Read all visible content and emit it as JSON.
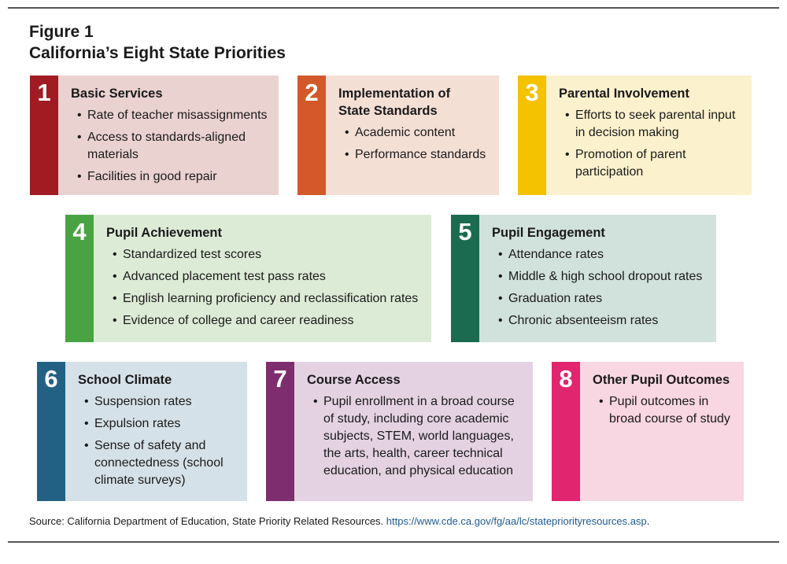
{
  "figure": {
    "label": "Figure 1",
    "title": "California’s Eight State Priorities"
  },
  "colors": {
    "p1": {
      "accent": "#a01c22",
      "fill": "#ead2d1"
    },
    "p2": {
      "accent": "#d3592a",
      "fill": "#f4dfd5"
    },
    "p3": {
      "accent": "#f5c200",
      "fill": "#fcf1cd"
    },
    "p4": {
      "accent": "#49a343",
      "fill": "#dcebd6"
    },
    "p5": {
      "accent": "#1b6b51",
      "fill": "#d1e1dc"
    },
    "p6": {
      "accent": "#226184",
      "fill": "#d5e1e8"
    },
    "p7": {
      "accent": "#7e2e6e",
      "fill": "#e4d2e2"
    },
    "p8": {
      "accent": "#e1256e",
      "fill": "#f8d6e2"
    }
  },
  "priorities": [
    {
      "number": "1",
      "title": "Basic Services",
      "items": [
        "Rate of teacher misassignments",
        "Access to standards-aligned materials",
        "Facilities in good repair"
      ]
    },
    {
      "number": "2",
      "title": "Implementation of State Standards",
      "items": [
        "Academic content",
        "Performance standards"
      ]
    },
    {
      "number": "3",
      "title": "Parental Involvement",
      "items": [
        "Efforts to seek parental input in decision making",
        "Promotion of parent participation"
      ]
    },
    {
      "number": "4",
      "title": "Pupil Achievement",
      "items": [
        "Standardized test scores",
        "Advanced placement test pass rates",
        "English learning proficiency and reclassification rates",
        "Evidence of college and career readiness"
      ]
    },
    {
      "number": "5",
      "title": "Pupil Engagement",
      "items": [
        "Attendance rates",
        "Middle & high school dropout rates",
        "Graduation rates",
        "Chronic absenteeism rates"
      ]
    },
    {
      "number": "6",
      "title": "School Climate",
      "items": [
        "Suspension rates",
        "Expulsion rates",
        "Sense of safety and connectedness (school climate surveys)"
      ]
    },
    {
      "number": "7",
      "title": "Course Access",
      "items": [
        "Pupil enrollment in a broad course of study, including core academic subjects, STEM, world languages, the arts, health, career technical education, and physical education"
      ]
    },
    {
      "number": "8",
      "title": "Other Pupil Outcomes",
      "items": [
        "Pupil outcomes in broad course of study"
      ]
    }
  ],
  "source": {
    "text": "Source: California Department of Education, State Priority Related Resources. ",
    "link": "https://www.cde.ca.gov/fg/aa/lc/statepriorityresources.asp",
    "end": "."
  }
}
